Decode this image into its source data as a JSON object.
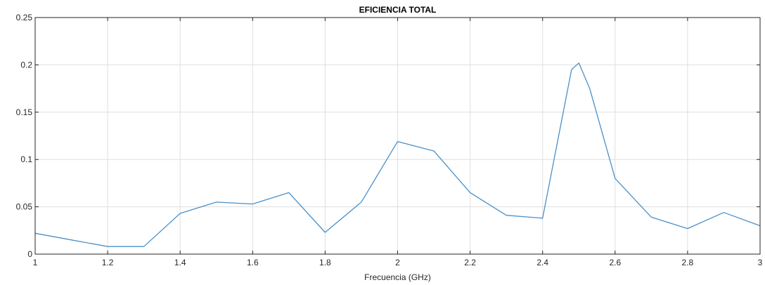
{
  "chart_data": {
    "type": "line",
    "title": "EFICIENCIA TOTAL",
    "xlabel": "Frecuencia (GHz)",
    "ylabel": "",
    "xlim": [
      1,
      3
    ],
    "ylim": [
      0,
      0.25
    ],
    "grid": true,
    "xticks": [
      1,
      1.2,
      1.4,
      1.6,
      1.8,
      2,
      2.2,
      2.4,
      2.6,
      2.8,
      3
    ],
    "xtick_labels": [
      "1",
      "1.2",
      "1.4",
      "1.6",
      "1.8",
      "2",
      "2.2",
      "2.4",
      "2.6",
      "2.8",
      "3"
    ],
    "yticks": [
      0,
      0.05,
      0.1,
      0.15,
      0.2,
      0.25
    ],
    "ytick_labels": [
      "0",
      "0.05",
      "0.1",
      "0.15",
      "0.2",
      "0.25"
    ],
    "series": [
      {
        "color": "#4a90c8",
        "x": [
          1.0,
          1.1,
          1.2,
          1.3,
          1.4,
          1.5,
          1.6,
          1.7,
          1.8,
          1.9,
          2.0,
          2.1,
          2.2,
          2.3,
          2.4,
          2.48,
          2.5,
          2.53,
          2.6,
          2.7,
          2.8,
          2.9,
          3.0
        ],
        "y": [
          0.022,
          0.015,
          0.008,
          0.008,
          0.043,
          0.055,
          0.053,
          0.065,
          0.023,
          0.055,
          0.119,
          0.109,
          0.065,
          0.041,
          0.038,
          0.195,
          0.202,
          0.175,
          0.08,
          0.039,
          0.027,
          0.044,
          0.03
        ]
      }
    ]
  }
}
